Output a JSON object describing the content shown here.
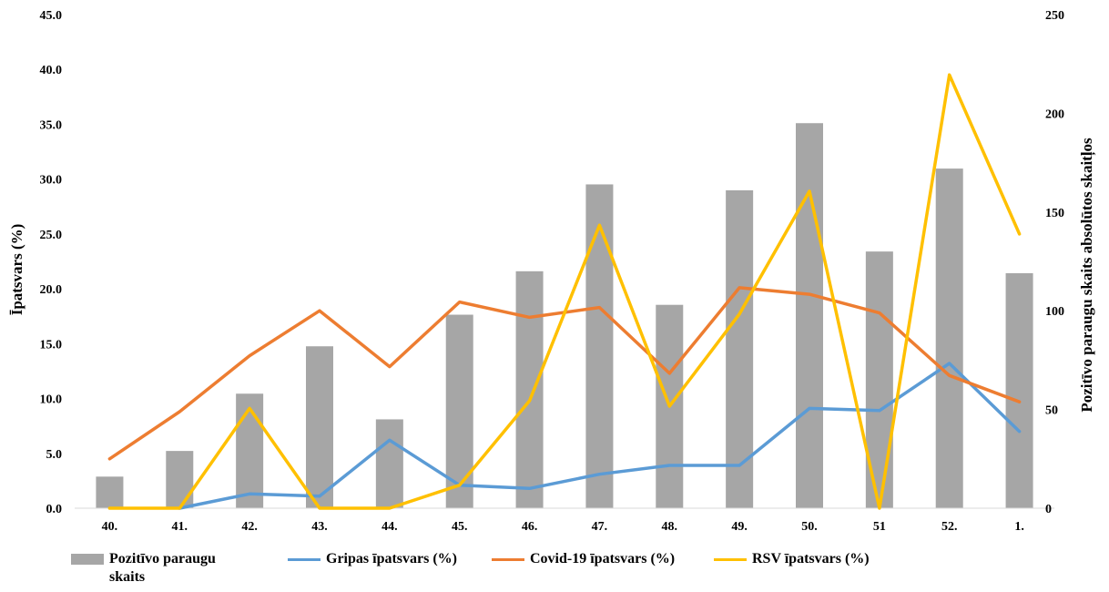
{
  "chart_data": {
    "type": "bar+line",
    "categories": [
      "40.",
      "41.",
      "42.",
      "43.",
      "44.",
      "45.",
      "46.",
      "47.",
      "48.",
      "49.",
      "50.",
      "51",
      "52.",
      "1."
    ],
    "bars": {
      "name": "Pozitīvo paraugu skaits",
      "axis": "right",
      "color": "#a6a6a6",
      "values": [
        16,
        29,
        58,
        82,
        45,
        98,
        120,
        164,
        103,
        161,
        195,
        130,
        172,
        119
      ]
    },
    "series": [
      {
        "name": "Gripas īpatsvars (%)",
        "axis": "left",
        "color": "#5b9bd5",
        "values": [
          null,
          0.0,
          1.3,
          1.1,
          6.2,
          2.1,
          1.8,
          3.1,
          3.9,
          3.9,
          9.1,
          8.9,
          13.2,
          7.0
        ]
      },
      {
        "name": "Covid-19 īpatsvars (%)",
        "axis": "left",
        "color": "#ed7d31",
        "values": [
          4.5,
          8.8,
          13.9,
          18.0,
          12.9,
          18.8,
          17.4,
          18.3,
          12.3,
          20.1,
          19.5,
          17.8,
          12.1,
          9.7
        ]
      },
      {
        "name": "RSV īpatsvars (%)",
        "axis": "left",
        "color": "#ffc000",
        "values": [
          0.0,
          0.0,
          9.1,
          0.0,
          0.0,
          2.1,
          9.8,
          25.8,
          9.3,
          17.7,
          28.9,
          0.0,
          39.5,
          25.0
        ]
      }
    ],
    "y_left": {
      "label": "Īpatsvars (%)",
      "range": [
        0,
        45
      ],
      "ticks": [
        "0.0",
        "5.0",
        "10.0",
        "15.0",
        "20.0",
        "25.0",
        "30.0",
        "35.0",
        "40.0",
        "45.0"
      ]
    },
    "y_right": {
      "label": "Pozitīvo paraugu skaits absolūtos skaitļos",
      "range": [
        0,
        250
      ],
      "ticks": [
        "0",
        "50",
        "100",
        "150",
        "200",
        "250"
      ]
    },
    "legend": {
      "placement": "bottom",
      "items": [
        {
          "label_lines": [
            "Pozitīvo paraugu",
            "skaits"
          ],
          "kind": "bar",
          "color": "#a6a6a6"
        },
        {
          "label_lines": [
            "Gripas īpatsvars (%)"
          ],
          "kind": "line",
          "color": "#5b9bd5"
        },
        {
          "label_lines": [
            "Covid-19 īpatsvars (%)"
          ],
          "kind": "line",
          "color": "#ed7d31"
        },
        {
          "label_lines": [
            "RSV īpatsvars (%)"
          ],
          "kind": "line",
          "color": "#ffc000"
        }
      ]
    },
    "grid": false
  }
}
